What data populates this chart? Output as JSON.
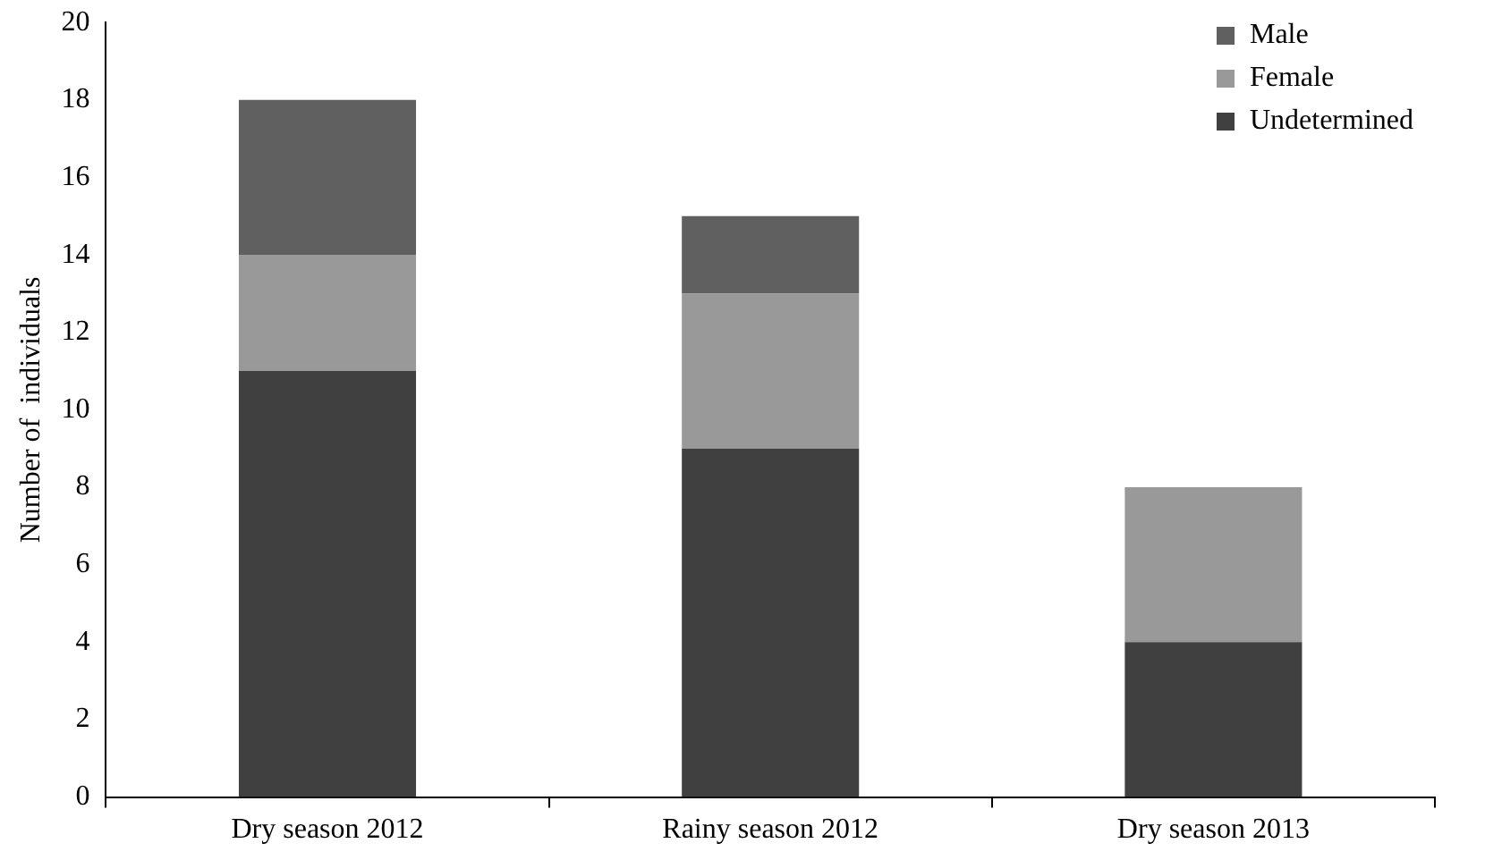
{
  "chart_data": {
    "type": "bar",
    "stacked": true,
    "ylabel": "Number of  individuals",
    "categories": [
      "Dry season 2012",
      "Rainy season 2012",
      "Dry season 2013"
    ],
    "series": [
      {
        "name": "Undetermined",
        "color": "#404040",
        "values": [
          11,
          9,
          4
        ]
      },
      {
        "name": "Female",
        "color": "#999999",
        "values": [
          3,
          4,
          4
        ]
      },
      {
        "name": "Male",
        "color": "#606060",
        "values": [
          4,
          2,
          0
        ]
      }
    ],
    "ylim": [
      0,
      20
    ],
    "yticks": [
      0,
      2,
      4,
      6,
      8,
      10,
      12,
      14,
      16,
      18,
      20
    ],
    "grid": false,
    "legend": "top right"
  }
}
